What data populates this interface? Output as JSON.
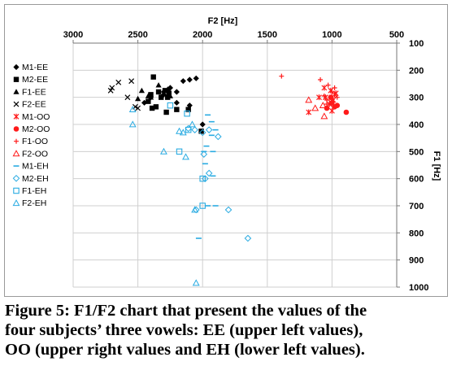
{
  "chart_data": {
    "type": "scatter",
    "title": "",
    "xlabel": "F2 [Hz]",
    "ylabel": "F1 [Hz]",
    "x_reversed": true,
    "y_reversed": true,
    "xlim": [
      3000,
      500
    ],
    "ylim": [
      100,
      1000
    ],
    "x_ticks": [
      "3000",
      "2500",
      "2000",
      "1500",
      "1000",
      "500"
    ],
    "y_ticks": [
      "100",
      "200",
      "300",
      "400",
      "500",
      "600",
      "700",
      "800",
      "900",
      "1000"
    ],
    "grid": true,
    "legend_position": "left",
    "colors": {
      "black": "#000000",
      "red": "#ff1a1a",
      "blue": "#29abe2",
      "grid": "#cfcfcf"
    },
    "series": [
      {
        "name": "M1-EE",
        "marker": "diamond",
        "color": "#000000",
        "points": [
          [
            2100,
            235
          ],
          [
            2050,
            230
          ],
          [
            2150,
            240
          ],
          [
            2250,
            265
          ],
          [
            2300,
            280
          ],
          [
            2400,
            300
          ],
          [
            2200,
            280
          ],
          [
            2100,
            330
          ],
          [
            2000,
            400
          ],
          [
            2450,
            320
          ],
          [
            2200,
            320
          ],
          [
            2300,
            290
          ]
        ]
      },
      {
        "name": "M2-EE",
        "marker": "square",
        "color": "#000000",
        "points": [
          [
            2380,
            225
          ],
          [
            2340,
            280
          ],
          [
            2290,
            275
          ],
          [
            2260,
            285
          ],
          [
            2400,
            290
          ],
          [
            2420,
            315
          ],
          [
            2320,
            300
          ],
          [
            2270,
            300
          ],
          [
            2360,
            335
          ],
          [
            2280,
            355
          ],
          [
            2200,
            345
          ],
          [
            2010,
            425
          ],
          [
            2110,
            345
          ],
          [
            2390,
            340
          ]
        ]
      },
      {
        "name": "F1-EE",
        "marker": "triangle",
        "color": "#000000",
        "points": [
          [
            2470,
            275
          ],
          [
            2420,
            295
          ],
          [
            2340,
            255
          ],
          [
            2270,
            270
          ],
          [
            2250,
            295
          ],
          [
            2400,
            300
          ],
          [
            2500,
            305
          ]
        ]
      },
      {
        "name": "F2-EE",
        "marker": "x",
        "color": "#000000",
        "points": [
          [
            2650,
            245
          ],
          [
            2700,
            265
          ],
          [
            2710,
            275
          ],
          [
            2580,
            300
          ],
          [
            2520,
            335
          ],
          [
            2500,
            340
          ],
          [
            2550,
            240
          ]
        ]
      },
      {
        "name": "M1-OO",
        "marker": "asterisk",
        "color": "#ff1a1a",
        "points": [
          [
            1180,
            355
          ],
          [
            1010,
            275
          ],
          [
            1000,
            300
          ],
          [
            990,
            310
          ],
          [
            1050,
            300
          ],
          [
            1060,
            265
          ],
          [
            970,
            285
          ],
          [
            1005,
            320
          ],
          [
            1000,
            350
          ],
          [
            980,
            290
          ],
          [
            1020,
            325
          ],
          [
            1100,
            300
          ]
        ]
      },
      {
        "name": "M2-OO",
        "marker": "circle",
        "color": "#ff1a1a",
        "points": [
          [
            890,
            355
          ],
          [
            980,
            335
          ],
          [
            1000,
            320
          ],
          [
            1010,
            300
          ],
          [
            1040,
            340
          ],
          [
            960,
            330
          ]
        ]
      },
      {
        "name": "F1-OO",
        "marker": "plus",
        "color": "#ff1a1a",
        "points": [
          [
            1390,
            222
          ],
          [
            1090,
            235
          ],
          [
            1030,
            255
          ],
          [
            980,
            265
          ],
          [
            1000,
            280
          ],
          [
            1010,
            300
          ],
          [
            1060,
            295
          ],
          [
            1040,
            310
          ],
          [
            960,
            300
          ],
          [
            1040,
            325
          ]
        ]
      },
      {
        "name": "F2-OO",
        "marker": "triangle-open",
        "color": "#ff1a1a",
        "points": [
          [
            1180,
            310
          ],
          [
            1130,
            340
          ],
          [
            1060,
            370
          ],
          [
            1070,
            330
          ]
        ]
      },
      {
        "name": "M1-EH",
        "marker": "dash",
        "color": "#29abe2",
        "points": [
          [
            1960,
            365
          ],
          [
            1930,
            390
          ],
          [
            1900,
            420
          ],
          [
            1930,
            440
          ],
          [
            1920,
            500
          ],
          [
            1990,
            500
          ],
          [
            1920,
            590
          ],
          [
            1960,
            700
          ],
          [
            1900,
            700
          ],
          [
            1980,
            545
          ],
          [
            2030,
            820
          ],
          [
            1970,
            480
          ]
        ]
      },
      {
        "name": "M2-EH",
        "marker": "diamond-open",
        "color": "#29abe2",
        "points": [
          [
            2110,
            415
          ],
          [
            1950,
            420
          ],
          [
            2060,
            420
          ],
          [
            1990,
            510
          ],
          [
            1950,
            580
          ],
          [
            1980,
            600
          ],
          [
            1800,
            715
          ],
          [
            1650,
            820
          ],
          [
            1880,
            445
          ],
          [
            2050,
            715
          ],
          [
            2000,
            430
          ]
        ]
      },
      {
        "name": "F1-EH",
        "marker": "square-open",
        "color": "#29abe2",
        "points": [
          [
            2250,
            330
          ],
          [
            2110,
            420
          ],
          [
            2180,
            500
          ],
          [
            2000,
            600
          ],
          [
            2000,
            700
          ],
          [
            2120,
            360
          ]
        ]
      },
      {
        "name": "F2-EH",
        "marker": "triangle-open",
        "color": "#29abe2",
        "points": [
          [
            2540,
            345
          ],
          [
            2180,
            425
          ],
          [
            2300,
            500
          ],
          [
            2130,
            520
          ],
          [
            2060,
            715
          ],
          [
            2050,
            985
          ],
          [
            2540,
            400
          ],
          [
            2080,
            400
          ],
          [
            2150,
            430
          ]
        ]
      }
    ]
  },
  "caption": {
    "lines": [
      "Figure 5: F1/F2 chart that present the values of the",
      "four subjects’ three vowels: EE (upper left values),",
      "OO (upper right values and EH (lower left values)."
    ]
  }
}
